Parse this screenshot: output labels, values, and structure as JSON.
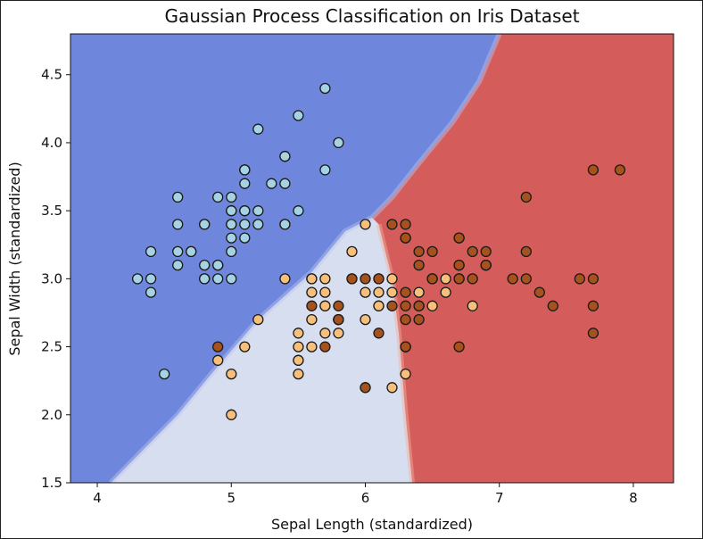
{
  "chart_data": {
    "type": "scatter",
    "title": "Gaussian Process Classification on Iris Dataset",
    "xlabel": "Sepal Length (standardized)",
    "ylabel": "Sepal Width (standardized)",
    "xlim": [
      3.8,
      8.3
    ],
    "ylim": [
      1.5,
      4.8
    ],
    "x_ticks": [
      "4",
      "5",
      "6",
      "7",
      "8"
    ],
    "y_ticks": [
      "1.5",
      "2.0",
      "2.5",
      "3.0",
      "3.5",
      "4.0",
      "4.5"
    ],
    "grid": false,
    "legend": "none",
    "decision_regions": [
      {
        "class": 0,
        "color": "#6f86dd",
        "boundary_to_next": [
          [
            4.1,
            1.5
          ],
          [
            4.3,
            1.7
          ],
          [
            4.6,
            2.0
          ],
          [
            4.85,
            2.3
          ],
          [
            5.2,
            2.7
          ],
          [
            5.6,
            3.05
          ],
          [
            5.85,
            3.35
          ],
          [
            6.05,
            3.45
          ],
          [
            6.2,
            3.6
          ],
          [
            6.4,
            3.85
          ],
          [
            6.65,
            4.15
          ],
          [
            6.85,
            4.45
          ],
          [
            7.0,
            4.8
          ]
        ]
      },
      {
        "class": 1,
        "color": "#d7deef",
        "boundary_to_next": [
          [
            6.35,
            1.5
          ],
          [
            6.3,
            2.0
          ],
          [
            6.25,
            2.6
          ],
          [
            6.2,
            3.0
          ],
          [
            6.1,
            3.4
          ]
        ]
      },
      {
        "class": 2,
        "color": "#d45d5b"
      }
    ],
    "series": [
      {
        "class": 0,
        "color": "#a6d3e3",
        "points": [
          [
            5.1,
            3.5
          ],
          [
            4.9,
            3.0
          ],
          [
            4.7,
            3.2
          ],
          [
            4.6,
            3.1
          ],
          [
            5.0,
            3.6
          ],
          [
            5.4,
            3.9
          ],
          [
            4.6,
            3.4
          ],
          [
            5.0,
            3.4
          ],
          [
            4.4,
            2.9
          ],
          [
            4.9,
            3.1
          ],
          [
            5.4,
            3.7
          ],
          [
            4.8,
            3.4
          ],
          [
            4.8,
            3.0
          ],
          [
            4.3,
            3.0
          ],
          [
            5.8,
            4.0
          ],
          [
            5.7,
            4.4
          ],
          [
            5.4,
            3.9
          ],
          [
            5.1,
            3.5
          ],
          [
            5.7,
            3.8
          ],
          [
            5.1,
            3.8
          ],
          [
            5.4,
            3.4
          ],
          [
            5.1,
            3.7
          ],
          [
            4.6,
            3.6
          ],
          [
            5.1,
            3.3
          ],
          [
            4.8,
            3.4
          ],
          [
            5.0,
            3.0
          ],
          [
            5.0,
            3.4
          ],
          [
            5.2,
            3.5
          ],
          [
            5.2,
            3.4
          ],
          [
            4.7,
            3.2
          ],
          [
            4.8,
            3.1
          ],
          [
            5.4,
            3.4
          ],
          [
            5.2,
            4.1
          ],
          [
            5.5,
            4.2
          ],
          [
            4.9,
            3.1
          ],
          [
            5.0,
            3.2
          ],
          [
            5.5,
            3.5
          ],
          [
            4.9,
            3.6
          ],
          [
            4.4,
            3.0
          ],
          [
            5.1,
            3.4
          ],
          [
            5.0,
            3.5
          ],
          [
            4.5,
            2.3
          ],
          [
            4.4,
            3.2
          ],
          [
            5.0,
            3.5
          ],
          [
            5.1,
            3.8
          ],
          [
            4.8,
            3.0
          ],
          [
            5.1,
            3.8
          ],
          [
            4.6,
            3.2
          ],
          [
            5.3,
            3.7
          ],
          [
            5.0,
            3.3
          ]
        ]
      },
      {
        "class": 1,
        "color": "#f6c07c",
        "points": [
          [
            5.5,
            2.3
          ],
          [
            6.5,
            2.8
          ],
          [
            5.7,
            2.8
          ],
          [
            6.3,
            3.3
          ],
          [
            4.9,
            2.4
          ],
          [
            6.6,
            2.9
          ],
          [
            5.2,
            2.7
          ],
          [
            5.0,
            2.0
          ],
          [
            5.9,
            3.0
          ],
          [
            6.0,
            2.2
          ],
          [
            6.1,
            2.9
          ],
          [
            5.6,
            2.9
          ],
          [
            5.6,
            3.0
          ],
          [
            5.8,
            2.7
          ],
          [
            6.2,
            2.2
          ],
          [
            5.6,
            2.5
          ],
          [
            5.9,
            3.2
          ],
          [
            6.1,
            2.8
          ],
          [
            6.3,
            2.5
          ],
          [
            6.1,
            2.8
          ],
          [
            6.4,
            2.9
          ],
          [
            6.6,
            3.0
          ],
          [
            6.8,
            2.8
          ],
          [
            6.7,
            3.0
          ],
          [
            6.0,
            2.9
          ],
          [
            5.7,
            2.6
          ],
          [
            5.5,
            2.4
          ],
          [
            5.5,
            2.4
          ],
          [
            5.8,
            2.7
          ],
          [
            6.0,
            2.7
          ],
          [
            5.4,
            3.0
          ],
          [
            6.0,
            3.4
          ],
          [
            6.7,
            3.1
          ],
          [
            6.3,
            2.3
          ],
          [
            5.6,
            3.0
          ],
          [
            5.5,
            2.5
          ],
          [
            5.5,
            2.6
          ],
          [
            6.1,
            3.0
          ],
          [
            5.8,
            2.6
          ],
          [
            5.0,
            2.3
          ],
          [
            5.6,
            2.7
          ],
          [
            5.7,
            3.0
          ],
          [
            5.7,
            2.9
          ],
          [
            6.2,
            2.9
          ],
          [
            5.1,
            2.5
          ],
          [
            5.7,
            2.8
          ],
          [
            6.4,
            2.8
          ],
          [
            6.2,
            3.0
          ],
          [
            6.3,
            2.5
          ],
          [
            6.9,
            3.1
          ]
        ]
      },
      {
        "class": 2,
        "color": "#a5521f",
        "points": [
          [
            6.3,
            3.3
          ],
          [
            5.8,
            2.7
          ],
          [
            7.1,
            3.0
          ],
          [
            6.3,
            2.9
          ],
          [
            6.5,
            3.0
          ],
          [
            7.6,
            3.0
          ],
          [
            4.9,
            2.5
          ],
          [
            7.3,
            2.9
          ],
          [
            6.7,
            2.5
          ],
          [
            7.2,
            3.6
          ],
          [
            6.5,
            3.2
          ],
          [
            6.4,
            2.7
          ],
          [
            6.8,
            3.0
          ],
          [
            5.7,
            2.5
          ],
          [
            5.8,
            2.8
          ],
          [
            6.4,
            3.2
          ],
          [
            6.5,
            3.0
          ],
          [
            7.7,
            3.8
          ],
          [
            7.7,
            2.6
          ],
          [
            6.0,
            2.2
          ],
          [
            6.9,
            3.2
          ],
          [
            5.6,
            2.8
          ],
          [
            7.7,
            2.8
          ],
          [
            6.3,
            2.7
          ],
          [
            6.7,
            3.3
          ],
          [
            7.2,
            3.2
          ],
          [
            6.2,
            2.8
          ],
          [
            6.1,
            3.0
          ],
          [
            6.4,
            2.8
          ],
          [
            7.2,
            3.0
          ],
          [
            7.4,
            2.8
          ],
          [
            7.9,
            3.8
          ],
          [
            6.4,
            2.8
          ],
          [
            6.3,
            2.8
          ],
          [
            6.1,
            2.6
          ],
          [
            7.7,
            3.0
          ],
          [
            6.3,
            3.4
          ],
          [
            6.4,
            3.1
          ],
          [
            6.0,
            3.0
          ],
          [
            6.9,
            3.1
          ],
          [
            6.7,
            3.1
          ],
          [
            6.9,
            3.1
          ],
          [
            5.8,
            2.7
          ],
          [
            6.8,
            3.2
          ],
          [
            6.7,
            3.3
          ],
          [
            6.7,
            3.0
          ],
          [
            6.3,
            2.5
          ],
          [
            6.5,
            3.0
          ],
          [
            6.2,
            3.4
          ],
          [
            5.9,
            3.0
          ]
        ]
      }
    ]
  }
}
